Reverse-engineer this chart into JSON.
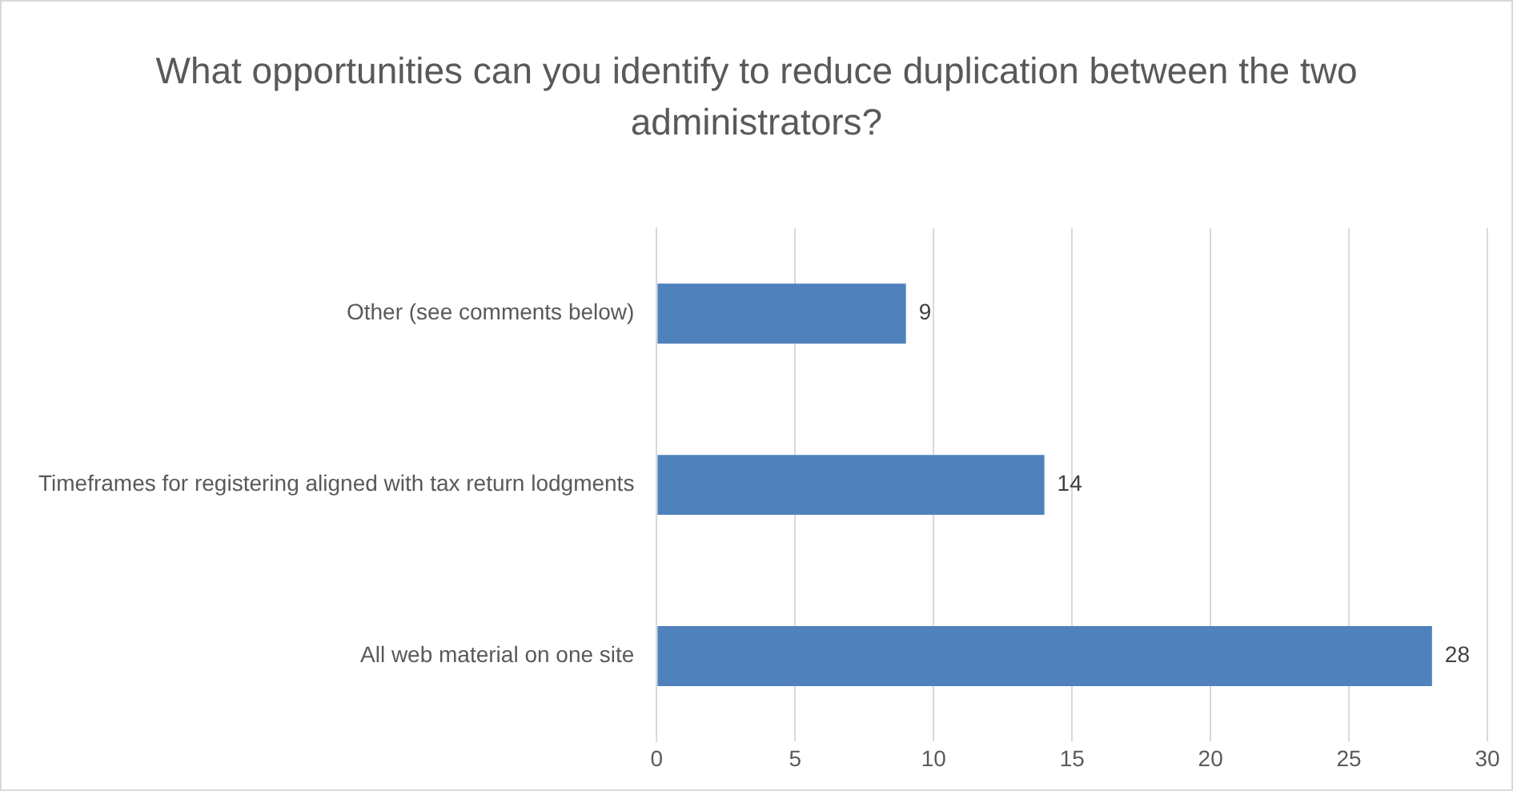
{
  "chart_data": {
    "type": "bar",
    "orientation": "horizontal",
    "title": "What opportunities can you identify to reduce duplication between the two administrators?",
    "categories": [
      "Other (see comments below)",
      "Timeframes for registering aligned with tax return lodgments",
      "All web material on one site"
    ],
    "values": [
      9,
      14,
      28
    ],
    "color": "#4f81bd",
    "xlim": [
      0,
      30
    ],
    "xticks": [
      0,
      5,
      10,
      15,
      20,
      25,
      30
    ],
    "grid": "x",
    "data_labels": true,
    "legend": false
  }
}
